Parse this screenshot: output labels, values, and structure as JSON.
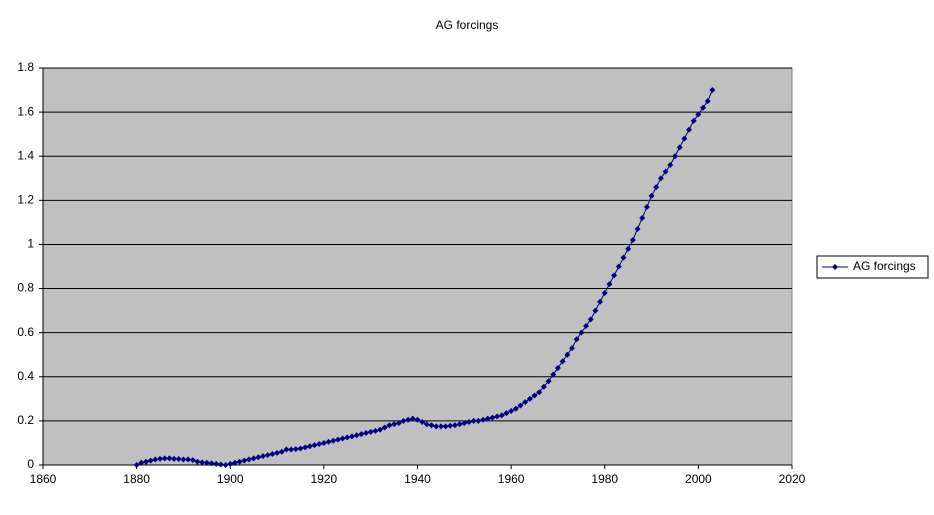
{
  "chart_data": {
    "type": "line",
    "title": "AG forcings",
    "x": [
      1880,
      1881,
      1882,
      1883,
      1884,
      1885,
      1886,
      1887,
      1888,
      1889,
      1890,
      1891,
      1892,
      1893,
      1894,
      1895,
      1896,
      1897,
      1898,
      1899,
      1900,
      1901,
      1902,
      1903,
      1904,
      1905,
      1906,
      1907,
      1908,
      1909,
      1910,
      1911,
      1912,
      1913,
      1914,
      1915,
      1916,
      1917,
      1918,
      1919,
      1920,
      1921,
      1922,
      1923,
      1924,
      1925,
      1926,
      1927,
      1928,
      1929,
      1930,
      1931,
      1932,
      1933,
      1934,
      1935,
      1936,
      1937,
      1938,
      1939,
      1940,
      1941,
      1942,
      1943,
      1944,
      1945,
      1946,
      1947,
      1948,
      1949,
      1950,
      1951,
      1952,
      1953,
      1954,
      1955,
      1956,
      1957,
      1958,
      1959,
      1960,
      1961,
      1962,
      1963,
      1964,
      1965,
      1966,
      1967,
      1968,
      1969,
      1970,
      1971,
      1972,
      1973,
      1974,
      1975,
      1976,
      1977,
      1978,
      1979,
      1980,
      1981,
      1982,
      1983,
      1984,
      1985,
      1986,
      1987,
      1988,
      1989,
      1990,
      1991,
      1992,
      1993,
      1994,
      1995,
      1996,
      1997,
      1998,
      1999,
      2000,
      2001,
      2002,
      2003
    ],
    "series": [
      {
        "name": "AG forcings",
        "color": "#000080",
        "values": [
          0,
          0.01,
          0.015,
          0.02,
          0.025,
          0.028,
          0.03,
          0.03,
          0.028,
          0.027,
          0.025,
          0.025,
          0.022,
          0.015,
          0.012,
          0.01,
          0.008,
          0.005,
          0.002,
          0,
          0.005,
          0.01,
          0.015,
          0.02,
          0.025,
          0.03,
          0.035,
          0.04,
          0.045,
          0.05,
          0.055,
          0.06,
          0.07,
          0.07,
          0.072,
          0.075,
          0.08,
          0.085,
          0.09,
          0.095,
          0.1,
          0.105,
          0.11,
          0.115,
          0.12,
          0.125,
          0.13,
          0.135,
          0.14,
          0.145,
          0.15,
          0.155,
          0.16,
          0.17,
          0.18,
          0.185,
          0.19,
          0.2,
          0.205,
          0.21,
          0.205,
          0.195,
          0.185,
          0.18,
          0.175,
          0.175,
          0.175,
          0.178,
          0.18,
          0.185,
          0.19,
          0.195,
          0.2,
          0.2,
          0.205,
          0.21,
          0.215,
          0.22,
          0.225,
          0.235,
          0.245,
          0.255,
          0.27,
          0.285,
          0.3,
          0.315,
          0.33,
          0.355,
          0.38,
          0.41,
          0.44,
          0.47,
          0.5,
          0.53,
          0.57,
          0.6,
          0.63,
          0.66,
          0.7,
          0.74,
          0.78,
          0.82,
          0.86,
          0.9,
          0.94,
          0.98,
          1.02,
          1.07,
          1.12,
          1.17,
          1.22,
          1.26,
          1.3,
          1.33,
          1.36,
          1.4,
          1.44,
          1.48,
          1.52,
          1.56,
          1.59,
          1.62,
          1.65,
          1.7
        ]
      }
    ],
    "xlim": [
      1860,
      2020
    ],
    "xticks": [
      1860,
      1880,
      1900,
      1920,
      1940,
      1960,
      1980,
      2000,
      2020
    ],
    "ylim": [
      0,
      1.8
    ],
    "yticks": [
      0,
      0.2,
      0.4,
      0.6,
      0.8,
      1,
      1.2,
      1.4,
      1.6,
      1.8
    ],
    "grid": true,
    "legend": "right"
  }
}
